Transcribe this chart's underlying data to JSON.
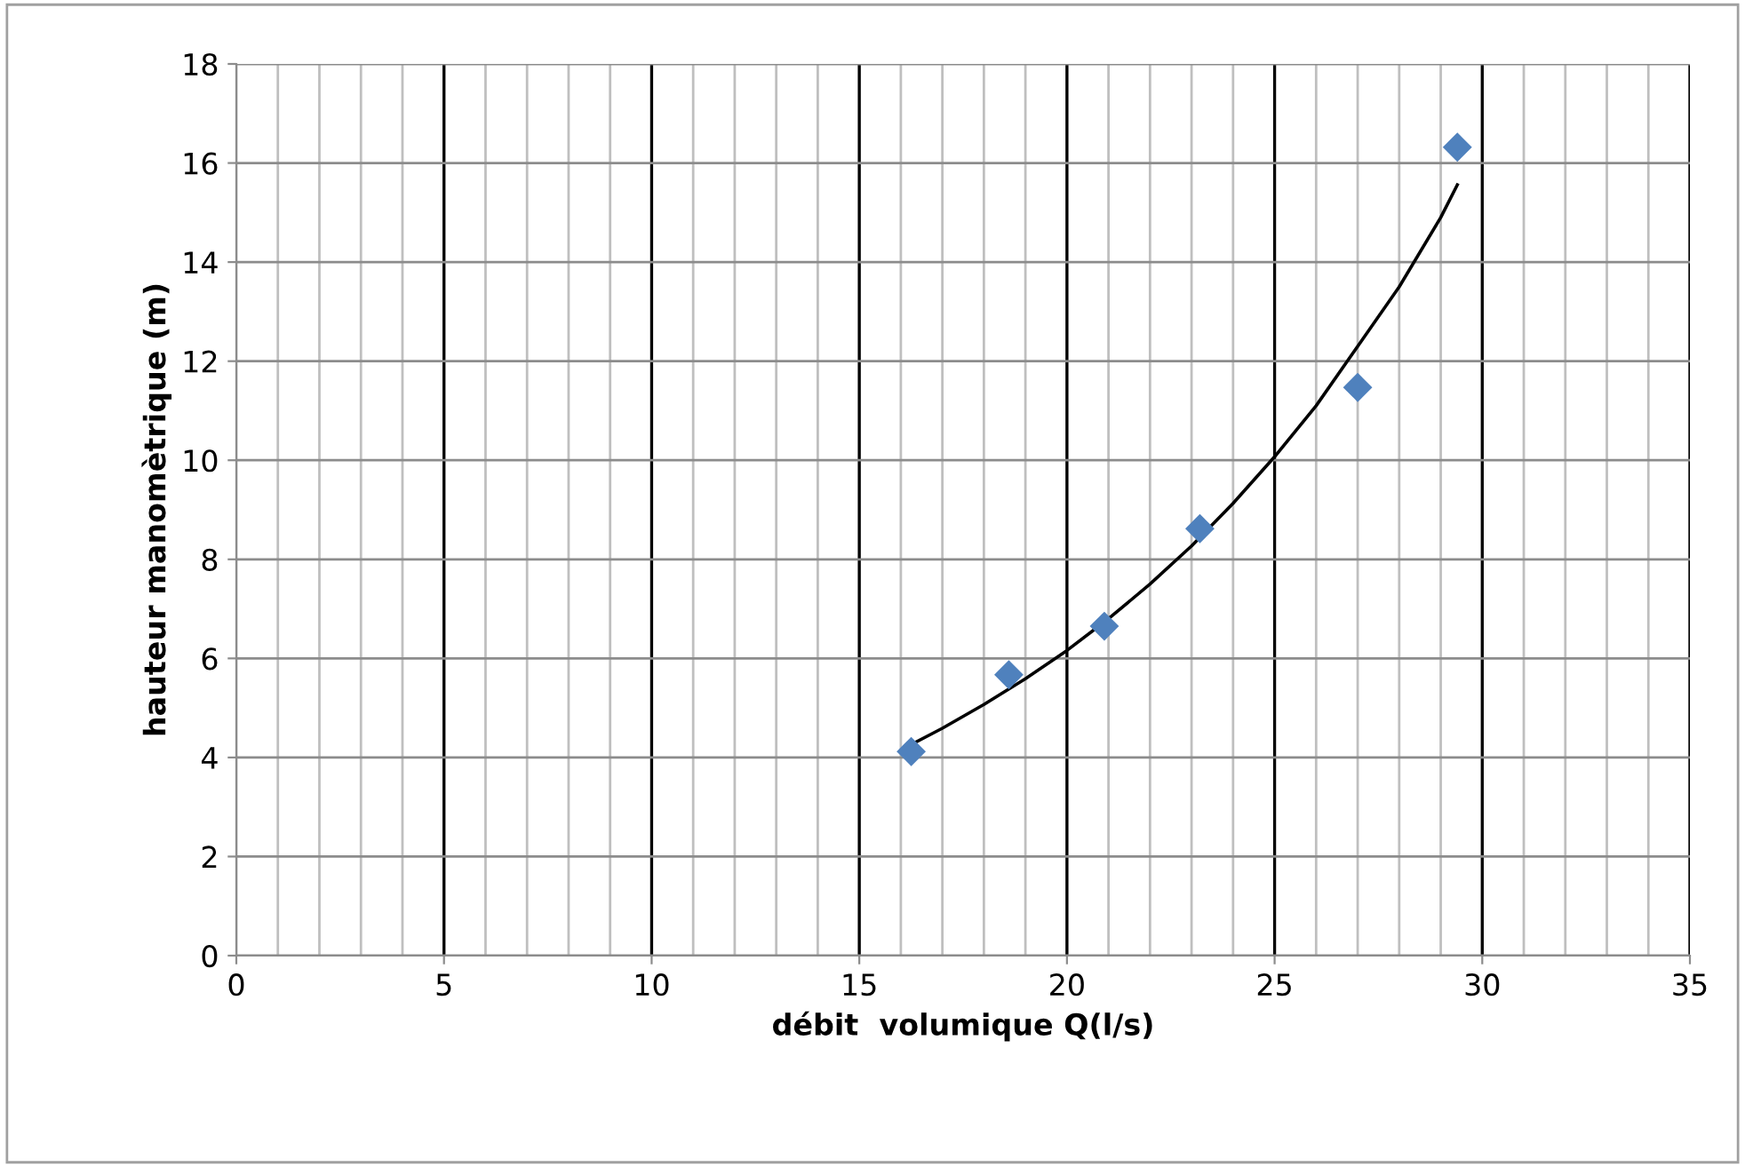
{
  "chart_data": {
    "type": "scatter",
    "xlabel": "débit  volumique Q(l/s)",
    "ylabel": "hauteur manomètrique (m)",
    "xlim": [
      0,
      35
    ],
    "xticks": [
      0,
      5,
      10,
      15,
      20,
      25,
      30,
      35
    ],
    "ylim": [
      0,
      18
    ],
    "yticks": [
      0,
      2,
      4,
      6,
      8,
      10,
      12,
      14,
      16,
      18
    ],
    "grid": true,
    "series": [
      {
        "marker": "diamond",
        "color": "#4f81bd",
        "x": [
          16.25,
          18.6,
          20.9,
          23.2,
          27.0,
          29.4
        ],
        "values": [
          4.12,
          5.67,
          6.65,
          8.62,
          11.47,
          16.32
        ]
      },
      {
        "type": "line",
        "color": "#000000",
        "x": [
          16.25,
          17,
          18,
          19,
          20,
          21,
          22,
          23,
          24,
          25,
          26,
          27,
          28,
          29,
          29.4
        ],
        "values": [
          4.26,
          4.59,
          5.07,
          5.59,
          6.16,
          6.8,
          7.5,
          8.27,
          9.13,
          10.07,
          11.1,
          12.3,
          13.5,
          14.9,
          15.56
        ]
      }
    ]
  }
}
